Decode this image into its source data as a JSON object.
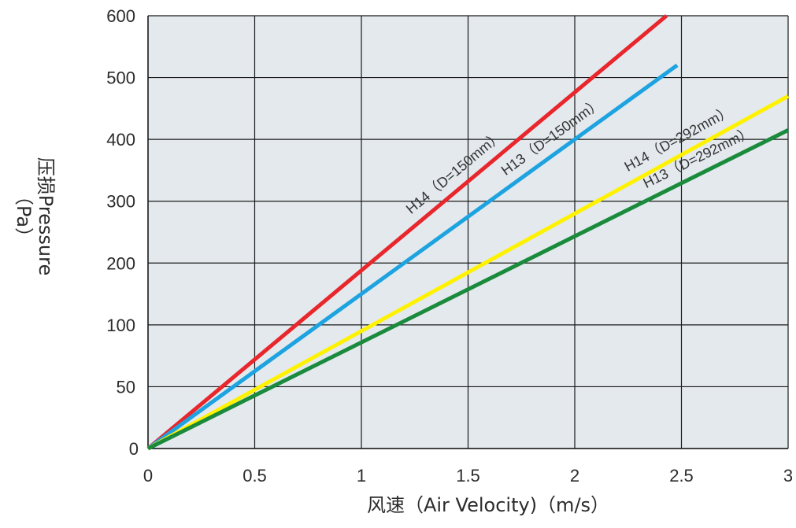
{
  "chart_data": {
    "type": "line",
    "xlabel": "风速（Air Velocity)（m/s）",
    "ylabel_line1": "压损Pressure",
    "ylabel_line2": "（Pa）",
    "x_ticks": [
      "0",
      "0.5",
      "1",
      "1.5",
      "2",
      "2.5",
      "3"
    ],
    "x_tick_values": [
      0,
      0.5,
      1,
      1.5,
      2,
      2.5,
      3
    ],
    "y_ticks": [
      "0",
      "50",
      "100",
      "200",
      "300",
      "400",
      "500",
      "600"
    ],
    "y_tick_values": [
      0,
      50,
      100,
      200,
      300,
      400,
      500,
      600
    ],
    "xlim": [
      0,
      3
    ],
    "ylim": [
      0,
      600
    ],
    "grid": true,
    "plot_background": "#e3e9ed",
    "series": [
      {
        "name": "H14（D=150mm）",
        "color": "#e8262b",
        "x": [
          0,
          2.43
        ],
        "y": [
          0,
          600
        ]
      },
      {
        "name": "H13（D=150mm）",
        "color": "#1da3e0",
        "x": [
          0,
          2.48
        ],
        "y": [
          0,
          520
        ]
      },
      {
        "name": "H14（D=292mm）",
        "color": "#fff200",
        "x": [
          0,
          3
        ],
        "y": [
          0,
          470
        ]
      },
      {
        "name": "H13（D=292mm）",
        "color": "#1a8a3c",
        "x": [
          0,
          3
        ],
        "y": [
          0,
          415
        ]
      }
    ]
  }
}
